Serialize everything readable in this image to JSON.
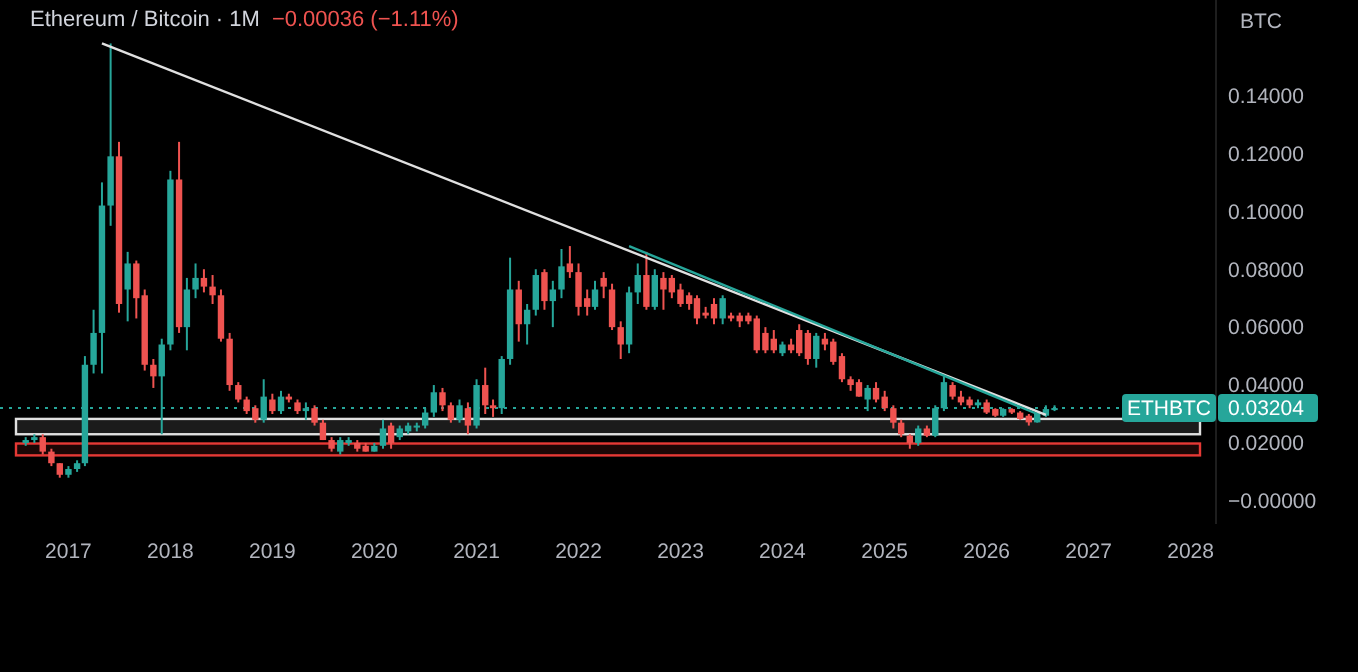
{
  "chart_data": {
    "type": "candlestick",
    "title": "Ethereum / Bitcoin · 1M",
    "ylabel": "BTC",
    "annotations": [
      "−0.00036 (−1.11%)",
      "0.03204"
    ],
    "x": [
      "2016-08",
      "2016-09",
      "2016-10",
      "2016-11",
      "2016-12",
      "2017-01",
      "2017-02",
      "2017-03",
      "2017-04",
      "2017-05",
      "2017-06",
      "2017-07",
      "2017-08",
      "2017-09",
      "2017-10",
      "2017-11",
      "2017-12",
      "2018-01",
      "2018-02",
      "2018-03",
      "2018-04",
      "2018-05",
      "2018-06",
      "2018-07",
      "2018-08",
      "2018-09",
      "2018-10",
      "2018-11",
      "2018-12",
      "2019-01",
      "2019-02",
      "2019-03",
      "2019-04",
      "2019-05",
      "2019-06",
      "2019-07",
      "2019-08",
      "2019-09",
      "2019-10",
      "2019-11",
      "2019-12",
      "2020-01",
      "2020-02",
      "2020-03",
      "2020-04",
      "2020-05",
      "2020-06",
      "2020-07",
      "2020-08",
      "2020-09",
      "2020-10",
      "2020-11",
      "2020-12",
      "2021-01",
      "2021-02",
      "2021-03",
      "2021-04",
      "2021-05",
      "2021-06",
      "2021-07",
      "2021-08",
      "2021-09",
      "2021-10",
      "2021-11",
      "2021-12",
      "2022-01",
      "2022-02",
      "2022-03",
      "2022-04",
      "2022-05",
      "2022-06",
      "2022-07",
      "2022-08",
      "2022-09",
      "2022-10",
      "2022-11",
      "2022-12",
      "2023-01",
      "2023-02",
      "2023-03",
      "2023-04",
      "2023-05",
      "2023-06",
      "2023-07",
      "2023-08",
      "2023-09",
      "2023-10",
      "2023-11",
      "2023-12",
      "2024-01",
      "2024-02",
      "2024-03",
      "2024-04",
      "2024-05",
      "2024-06",
      "2024-07",
      "2024-08",
      "2024-09",
      "2024-10",
      "2024-11",
      "2024-12",
      "2025-01",
      "2025-02",
      "2025-03",
      "2025-04",
      "2025-05",
      "2025-06",
      "2025-07",
      "2025-08",
      "2025-09",
      "2025-10",
      "2025-11",
      "2025-12",
      "2026-01",
      "2026-02",
      "2026-03",
      "2026-04",
      "2026-05",
      "2026-06",
      "2026-07",
      "2026-08",
      "2026-09"
    ],
    "ohlc": [
      [
        0.02,
        0.022,
        0.019,
        0.021
      ],
      [
        0.021,
        0.023,
        0.02,
        0.022
      ],
      [
        0.022,
        0.023,
        0.016,
        0.017
      ],
      [
        0.017,
        0.018,
        0.012,
        0.013
      ],
      [
        0.013,
        0.013,
        0.008,
        0.009
      ],
      [
        0.009,
        0.012,
        0.008,
        0.011
      ],
      [
        0.011,
        0.014,
        0.01,
        0.013
      ],
      [
        0.013,
        0.05,
        0.012,
        0.047
      ],
      [
        0.047,
        0.066,
        0.044,
        0.058
      ],
      [
        0.058,
        0.11,
        0.044,
        0.102
      ],
      [
        0.102,
        0.158,
        0.095,
        0.119
      ],
      [
        0.119,
        0.124,
        0.065,
        0.068
      ],
      [
        0.073,
        0.086,
        0.062,
        0.082
      ],
      [
        0.082,
        0.083,
        0.063,
        0.07
      ],
      [
        0.071,
        0.073,
        0.045,
        0.047
      ],
      [
        0.047,
        0.049,
        0.039,
        0.043
      ],
      [
        0.043,
        0.056,
        0.023,
        0.054
      ],
      [
        0.054,
        0.114,
        0.052,
        0.111
      ],
      [
        0.111,
        0.124,
        0.058,
        0.06
      ],
      [
        0.06,
        0.077,
        0.052,
        0.073
      ],
      [
        0.073,
        0.082,
        0.07,
        0.077
      ],
      [
        0.077,
        0.08,
        0.072,
        0.074
      ],
      [
        0.074,
        0.078,
        0.068,
        0.071
      ],
      [
        0.071,
        0.073,
        0.055,
        0.056
      ],
      [
        0.056,
        0.058,
        0.038,
        0.04
      ],
      [
        0.04,
        0.041,
        0.034,
        0.035
      ],
      [
        0.035,
        0.036,
        0.03,
        0.031
      ],
      [
        0.032,
        0.033,
        0.027,
        0.028
      ],
      [
        0.028,
        0.042,
        0.027,
        0.036
      ],
      [
        0.035,
        0.037,
        0.03,
        0.031
      ],
      [
        0.031,
        0.038,
        0.03,
        0.036
      ],
      [
        0.036,
        0.037,
        0.034,
        0.035
      ],
      [
        0.034,
        0.035,
        0.03,
        0.031
      ],
      [
        0.031,
        0.034,
        0.028,
        0.032
      ],
      [
        0.032,
        0.033,
        0.026,
        0.027
      ],
      [
        0.027,
        0.028,
        0.021,
        0.021
      ],
      [
        0.021,
        0.022,
        0.017,
        0.018
      ],
      [
        0.017,
        0.022,
        0.016,
        0.021
      ],
      [
        0.02,
        0.022,
        0.019,
        0.021
      ],
      [
        0.02,
        0.021,
        0.017,
        0.018
      ],
      [
        0.019,
        0.02,
        0.017,
        0.017
      ],
      [
        0.017,
        0.02,
        0.017,
        0.019
      ],
      [
        0.019,
        0.028,
        0.018,
        0.025
      ],
      [
        0.026,
        0.027,
        0.018,
        0.02
      ],
      [
        0.022,
        0.026,
        0.021,
        0.025
      ],
      [
        0.024,
        0.027,
        0.023,
        0.026
      ],
      [
        0.0255,
        0.027,
        0.024,
        0.026
      ],
      [
        0.026,
        0.032,
        0.025,
        0.0305
      ],
      [
        0.0305,
        0.04,
        0.029,
        0.0375
      ],
      [
        0.0375,
        0.039,
        0.031,
        0.033
      ],
      [
        0.033,
        0.034,
        0.027,
        0.028
      ],
      [
        0.028,
        0.035,
        0.027,
        0.033
      ],
      [
        0.032,
        0.034,
        0.023,
        0.026
      ],
      [
        0.026,
        0.042,
        0.025,
        0.04
      ],
      [
        0.04,
        0.046,
        0.03,
        0.033
      ],
      [
        0.033,
        0.035,
        0.029,
        0.032
      ],
      [
        0.032,
        0.05,
        0.03,
        0.049
      ],
      [
        0.049,
        0.084,
        0.047,
        0.073
      ],
      [
        0.073,
        0.076,
        0.055,
        0.061
      ],
      [
        0.061,
        0.068,
        0.054,
        0.066
      ],
      [
        0.066,
        0.08,
        0.064,
        0.078
      ],
      [
        0.079,
        0.08,
        0.066,
        0.069
      ],
      [
        0.069,
        0.076,
        0.06,
        0.073
      ],
      [
        0.073,
        0.087,
        0.07,
        0.081
      ],
      [
        0.082,
        0.088,
        0.077,
        0.079
      ],
      [
        0.079,
        0.082,
        0.064,
        0.067
      ],
      [
        0.07,
        0.073,
        0.064,
        0.067
      ],
      [
        0.067,
        0.076,
        0.066,
        0.073
      ],
      [
        0.077,
        0.079,
        0.07,
        0.074
      ],
      [
        0.073,
        0.075,
        0.059,
        0.06
      ],
      [
        0.06,
        0.062,
        0.049,
        0.054
      ],
      [
        0.054,
        0.074,
        0.051,
        0.072
      ],
      [
        0.072,
        0.082,
        0.068,
        0.078
      ],
      [
        0.078,
        0.086,
        0.066,
        0.067
      ],
      [
        0.067,
        0.08,
        0.066,
        0.078
      ],
      [
        0.077,
        0.079,
        0.066,
        0.073
      ],
      [
        0.077,
        0.078,
        0.07,
        0.072
      ],
      [
        0.073,
        0.075,
        0.067,
        0.068
      ],
      [
        0.071,
        0.072,
        0.066,
        0.068
      ],
      [
        0.07,
        0.071,
        0.061,
        0.063
      ],
      [
        0.065,
        0.067,
        0.063,
        0.064
      ],
      [
        0.068,
        0.07,
        0.061,
        0.063
      ],
      [
        0.063,
        0.071,
        0.061,
        0.07
      ],
      [
        0.064,
        0.065,
        0.062,
        0.063
      ],
      [
        0.064,
        0.065,
        0.06,
        0.062
      ],
      [
        0.064,
        0.065,
        0.061,
        0.062
      ],
      [
        0.063,
        0.064,
        0.051,
        0.052
      ],
      [
        0.058,
        0.06,
        0.051,
        0.052
      ],
      [
        0.056,
        0.059,
        0.051,
        0.052
      ],
      [
        0.051,
        0.055,
        0.05,
        0.054
      ],
      [
        0.054,
        0.056,
        0.051,
        0.052
      ],
      [
        0.059,
        0.061,
        0.05,
        0.051
      ],
      [
        0.058,
        0.059,
        0.047,
        0.049
      ],
      [
        0.049,
        0.058,
        0.046,
        0.057
      ],
      [
        0.056,
        0.058,
        0.052,
        0.054
      ],
      [
        0.055,
        0.056,
        0.047,
        0.048
      ],
      [
        0.05,
        0.051,
        0.041,
        0.042
      ],
      [
        0.042,
        0.043,
        0.038,
        0.04
      ],
      [
        0.041,
        0.042,
        0.036,
        0.036
      ],
      [
        0.035,
        0.04,
        0.031,
        0.039
      ],
      [
        0.039,
        0.041,
        0.034,
        0.035
      ],
      [
        0.036,
        0.038,
        0.031,
        0.032
      ],
      [
        0.032,
        0.033,
        0.025,
        0.027
      ],
      [
        0.027,
        0.028,
        0.022,
        0.023
      ],
      [
        0.0225,
        0.023,
        0.018,
        0.02
      ],
      [
        0.02,
        0.026,
        0.019,
        0.025
      ],
      [
        0.025,
        0.026,
        0.022,
        0.0225
      ],
      [
        0.0225,
        0.033,
        0.022,
        0.032
      ],
      [
        0.032,
        0.043,
        0.031,
        0.041
      ],
      [
        0.04,
        0.041,
        0.035,
        0.036
      ],
      [
        0.036,
        0.038,
        0.033,
        0.034
      ],
      [
        0.035,
        0.036,
        0.032,
        0.033
      ],
      [
        0.033,
        0.035,
        0.032,
        0.034
      ],
      [
        0.034,
        0.035,
        0.03,
        0.0305
      ],
      [
        0.0317,
        0.032,
        0.029,
        0.0294
      ],
      [
        0.0294,
        0.032,
        0.029,
        0.0317
      ],
      [
        0.0317,
        0.032,
        0.03,
        0.0305
      ],
      [
        0.0305,
        0.031,
        0.028,
        0.0283
      ],
      [
        0.0294,
        0.03,
        0.026,
        0.0271
      ],
      [
        0.0271,
        0.031,
        0.027,
        0.0305
      ],
      [
        0.0294,
        0.033,
        0.029,
        0.0317
      ],
      [
        0.0315,
        0.033,
        0.031,
        0.03204
      ]
    ],
    "series": [
      {
        "type": "line",
        "color": "#e0e0e0",
        "x": [
          "2017-05",
          "2026-08"
        ],
        "values": [
          0.158,
          0.0297
        ]
      },
      {
        "type": "line",
        "color": "#26a69a",
        "x": [
          "2022-07",
          "2026-07"
        ],
        "values": [
          0.088,
          0.03
        ]
      }
    ],
    "bands": [
      {
        "axis": "y",
        "from": 0.023,
        "to": 0.0283,
        "color": "#e0e0e0"
      },
      {
        "axis": "y",
        "from": 0.0157,
        "to": 0.0198,
        "color": "#e53935"
      }
    ],
    "ref_lines": [
      {
        "axis": "y",
        "value": 0.03204,
        "label": "ETHBTC",
        "color": "#26a69a",
        "line_style": "dotted"
      }
    ],
    "xlim": [
      "2016-05",
      "2028-04"
    ],
    "xticks": [
      "2017",
      "2018",
      "2019",
      "2020",
      "2021",
      "2022",
      "2023",
      "2024",
      "2025",
      "2026",
      "2027",
      "2028"
    ],
    "ylim": [
      -0.008,
      0.173
    ],
    "yticks": [
      {
        "value": 0.14,
        "label": "0.14000"
      },
      {
        "value": 0.12,
        "label": "0.12000"
      },
      {
        "value": 0.1,
        "label": "0.10000"
      },
      {
        "value": 0.08,
        "label": "0.08000"
      },
      {
        "value": 0.06,
        "label": "0.06000"
      },
      {
        "value": 0.04,
        "label": "0.04000"
      },
      {
        "value": 0.02,
        "label": "0.02000"
      },
      {
        "value": 0,
        "label": "−0.00000"
      }
    ]
  }
}
